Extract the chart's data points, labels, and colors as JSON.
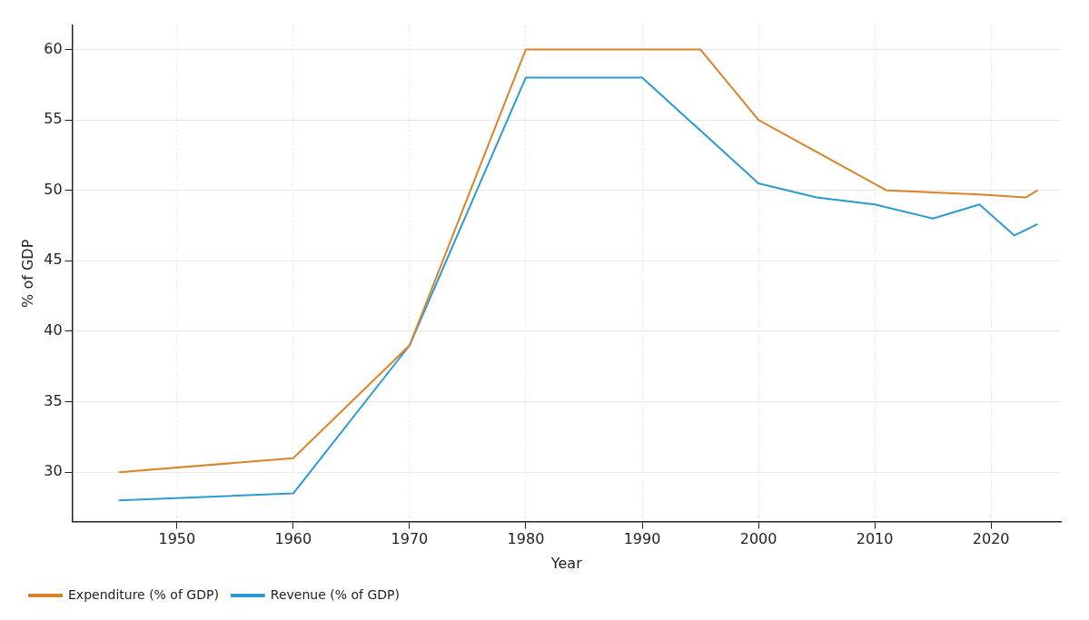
{
  "chart_data": {
    "type": "line",
    "xlabel": "Year",
    "ylabel": "% of GDP",
    "xlim": [
      1941,
      2026
    ],
    "xticks": [
      1950,
      1960,
      1970,
      1980,
      1990,
      2000,
      2010,
      2020
    ],
    "ylim": [
      26.5,
      61.7
    ],
    "yticks": [
      30,
      35,
      40,
      45,
      50,
      55,
      60
    ],
    "grid": true,
    "legend": "bottom left",
    "marker": "none",
    "line_style": "solid",
    "series": [
      {
        "name": "Expenditure (% of GDP)",
        "color": "#d9842a",
        "x": [
          1945,
          1960,
          1970,
          1980,
          1995,
          2000,
          2011,
          2019,
          2023,
          2024
        ],
        "values": [
          30,
          31,
          39,
          60,
          60,
          55,
          50,
          49.7,
          49.5,
          50
        ]
      },
      {
        "name": "Revenue (% of GDP)",
        "color": "#2b9ad3",
        "x": [
          1945,
          1960,
          1970,
          1980,
          1990,
          2000,
          2005,
          2010,
          2015,
          2019,
          2022,
          2024
        ],
        "values": [
          28,
          28.5,
          39,
          58,
          58,
          50.5,
          49.5,
          49,
          48,
          49,
          46.8,
          47.6
        ]
      }
    ]
  }
}
